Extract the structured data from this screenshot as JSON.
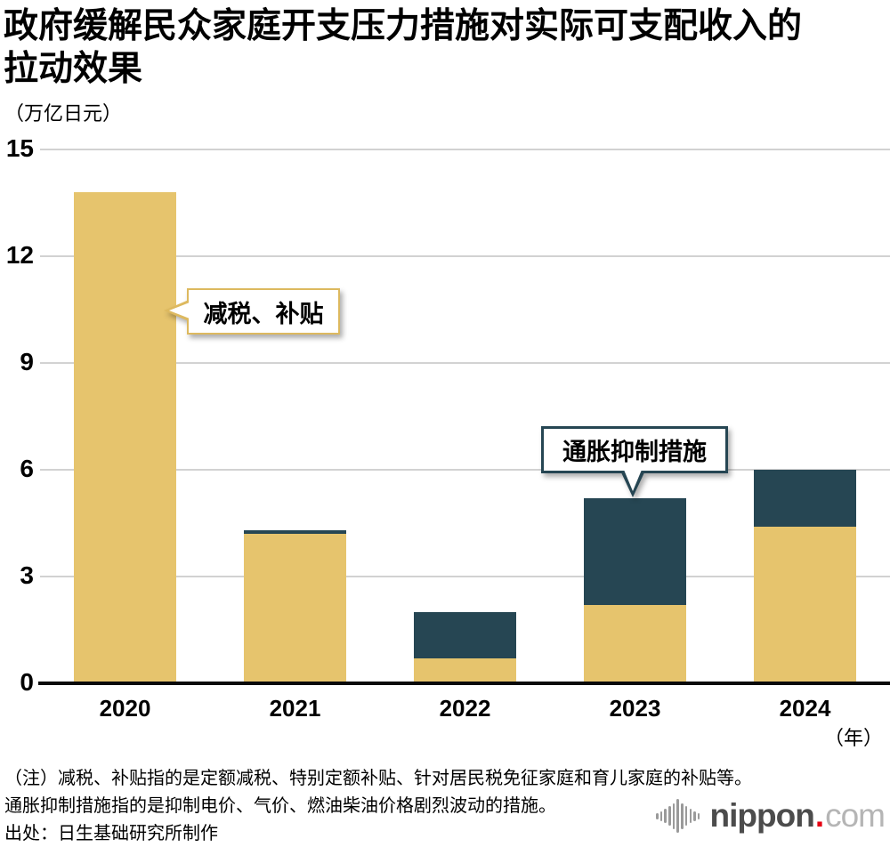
{
  "title_lines": [
    "政府缓解民众家庭开支压力措施对实际可支配收入的",
    "拉动效果"
  ],
  "unit_label": "（万亿日元）",
  "chart_data": {
    "type": "bar",
    "stacked": true,
    "title": "政府缓解民众家庭开支压力措施对实际可支配收入的拉动效果",
    "ylabel": "（万亿日元）",
    "xlabel_suffix": "（年）",
    "categories": [
      "2020",
      "2021",
      "2022",
      "2023",
      "2024"
    ],
    "series": [
      {
        "name": "减税、补贴",
        "color": "#e6c46d",
        "values": [
          13.8,
          4.2,
          0.7,
          2.2,
          4.4
        ]
      },
      {
        "name": "通胀抑制措施",
        "color": "#264653",
        "values": [
          0,
          0.1,
          1.3,
          3.0,
          1.6
        ]
      }
    ],
    "ylim": [
      0,
      15
    ],
    "yticks": [
      0,
      3,
      6,
      9,
      12,
      15
    ],
    "grid": true,
    "legend_position": "none",
    "annotations": [
      {
        "text": "减税、补贴",
        "target": "2020-subsidy-bar"
      },
      {
        "text": "通胀抑制措施",
        "target": "2023-inflation-segment"
      }
    ]
  },
  "notes": [
    "（注）减税、补贴指的是定额减税、特别定额补贴、针对居民税免征家庭和育儿家庭的补贴等。",
    "通胀抑制措施指的是抑制电价、气价、燃油柴油价格剧烈波动的措施。",
    "出处：日生基础研究所制作"
  ],
  "logo": {
    "name": "nippon",
    "dot": ".",
    "tld": "com",
    "red": "#e60012"
  }
}
